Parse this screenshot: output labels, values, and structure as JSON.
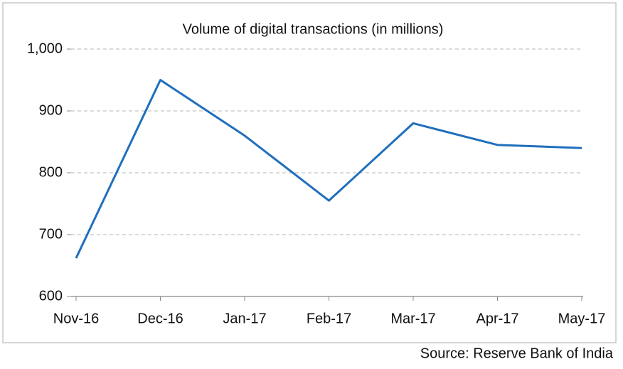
{
  "chart_data": {
    "type": "line",
    "title": "Volume of digital transactions (in millions)",
    "source": "Source: Reserve Bank of India",
    "categories": [
      "Nov-16",
      "Dec-16",
      "Jan-17",
      "Feb-17",
      "Mar-17",
      "Apr-17",
      "May-17"
    ],
    "values": [
      662,
      950,
      860,
      755,
      880,
      845,
      840
    ],
    "color": "#1f6fbd",
    "ylim": [
      600,
      1000
    ],
    "yticks": [
      600,
      700,
      800,
      900,
      {
        "value": 1000,
        "label": "1,000"
      }
    ],
    "grid": true
  }
}
